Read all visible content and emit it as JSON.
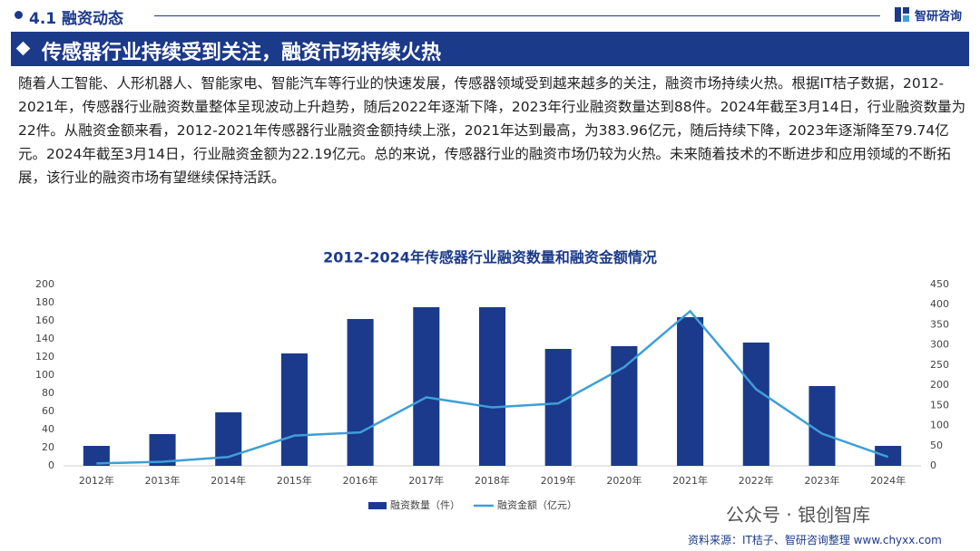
{
  "header": {
    "section": "4.1 融资动态",
    "brand": "智研咨询",
    "banner": "传感器行业持续受到关注，融资市场持续火热"
  },
  "paragraph": "随着人工智能、人形机器人、智能家电、智能汽车等行业的快速发展，传感器领域受到越来越多的关注，融资市场持续火热。根据IT桔子数据，2012-2021年，传感器行业融资数量整体呈现波动上升趋势，随后2022年逐渐下降，2023年行业融资数量达到88件。2024年截至3月14日，行业融资数量为22件。从融资金额来看，2012-2021年传感器行业融资金额持续上涨，2021年达到最高，为383.96亿元，随后持续下降，2023年逐渐降至79.74亿元。2024年截至3月14日，行业融资金额为22.19亿元。总的来说，传感器行业的融资市场仍较为火热。未来随着技术的不断进步和应用领域的不断拓展，该行业的融资市场有望继续保持活跃。",
  "chart_data": {
    "type": "bar-line",
    "title": "2012-2024年传感器行业融资数量和融资金额情况",
    "categories": [
      "2012年",
      "2013年",
      "2014年",
      "2015年",
      "2016年",
      "2017年",
      "2018年",
      "2019年",
      "2020年",
      "2021年",
      "2022年",
      "2023年",
      "2024年"
    ],
    "series": [
      {
        "name": "融资数量（件）",
        "type": "bar",
        "color": "#1b3a8c",
        "values": [
          22,
          35,
          59,
          124,
          162,
          175,
          175,
          129,
          132,
          164,
          136,
          88,
          22
        ]
      },
      {
        "name": "融资金额（亿元）",
        "type": "line",
        "axis": "y2",
        "color": "#3e9fd6",
        "values": [
          6,
          10,
          22,
          75,
          83,
          170,
          145,
          155,
          245,
          383.96,
          190,
          79.74,
          22.19
        ]
      }
    ],
    "ylim": [
      0,
      200
    ],
    "yticks": [
      0,
      20,
      40,
      60,
      80,
      100,
      120,
      140,
      160,
      180,
      200
    ],
    "y2lim": [
      0,
      450
    ],
    "y2ticks": [
      0,
      50,
      100,
      150,
      200,
      250,
      300,
      350,
      400,
      450
    ],
    "grid": false,
    "legend": "bottom"
  },
  "watermark": "公众号 · 银创智库",
  "source": "资料来源：IT桔子、智研咨询整理 www.chyxx.com"
}
